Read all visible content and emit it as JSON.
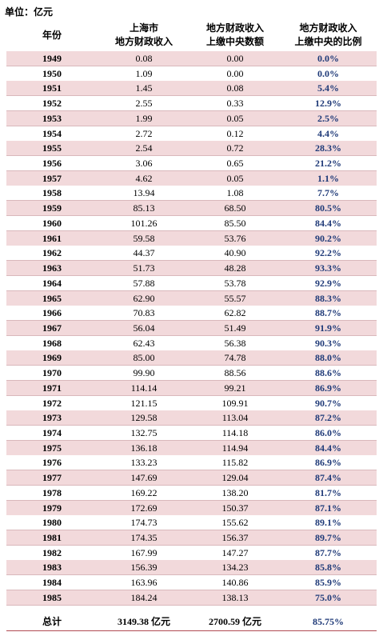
{
  "unit": "单位：亿元",
  "header": {
    "columns": [
      {
        "lines": [
          "年份"
        ]
      },
      {
        "lines": [
          "上海市",
          "地方财政收入"
        ]
      },
      {
        "lines": [
          "地方财政收入",
          "上缴中央数额"
        ]
      },
      {
        "lines": [
          "地方财政收入",
          "上缴中央的比例"
        ]
      }
    ]
  },
  "table": {
    "rows": [
      [
        "1949",
        "0.08",
        "0.00",
        "0.0%"
      ],
      [
        "1950",
        "1.09",
        "0.00",
        "0.0%"
      ],
      [
        "1951",
        "1.45",
        "0.08",
        "5.4%"
      ],
      [
        "1952",
        "2.55",
        "0.33",
        "12.9%"
      ],
      [
        "1953",
        "1.99",
        "0.05",
        "2.5%"
      ],
      [
        "1954",
        "2.72",
        "0.12",
        "4.4%"
      ],
      [
        "1955",
        "2.54",
        "0.72",
        "28.3%"
      ],
      [
        "1956",
        "3.06",
        "0.65",
        "21.2%"
      ],
      [
        "1957",
        "4.62",
        "0.05",
        "1.1%"
      ],
      [
        "1958",
        "13.94",
        "1.08",
        "7.7%"
      ],
      [
        "1959",
        "85.13",
        "68.50",
        "80.5%"
      ],
      [
        "1960",
        "101.26",
        "85.50",
        "84.4%"
      ],
      [
        "1961",
        "59.58",
        "53.76",
        "90.2%"
      ],
      [
        "1962",
        "44.37",
        "40.90",
        "92.2%"
      ],
      [
        "1963",
        "51.73",
        "48.28",
        "93.3%"
      ],
      [
        "1964",
        "57.88",
        "53.78",
        "92.9%"
      ],
      [
        "1965",
        "62.90",
        "55.57",
        "88.3%"
      ],
      [
        "1966",
        "70.83",
        "62.82",
        "88.7%"
      ],
      [
        "1967",
        "56.04",
        "51.49",
        "91.9%"
      ],
      [
        "1968",
        "62.43",
        "56.38",
        "90.3%"
      ],
      [
        "1969",
        "85.00",
        "74.78",
        "88.0%"
      ],
      [
        "1970",
        "99.90",
        "88.56",
        "88.6%"
      ],
      [
        "1971",
        "114.14",
        "99.21",
        "86.9%"
      ],
      [
        "1972",
        "121.15",
        "109.91",
        "90.7%"
      ],
      [
        "1973",
        "129.58",
        "113.04",
        "87.2%"
      ],
      [
        "1974",
        "132.75",
        "114.18",
        "86.0%"
      ],
      [
        "1975",
        "136.18",
        "114.94",
        "84.4%"
      ],
      [
        "1976",
        "133.23",
        "115.82",
        "86.9%"
      ],
      [
        "1977",
        "147.69",
        "129.04",
        "87.4%"
      ],
      [
        "1978",
        "169.22",
        "138.20",
        "81.7%"
      ],
      [
        "1979",
        "172.69",
        "150.37",
        "87.1%"
      ],
      [
        "1980",
        "174.73",
        "155.62",
        "89.1%"
      ],
      [
        "1981",
        "174.35",
        "156.37",
        "89.7%"
      ],
      [
        "1982",
        "167.99",
        "147.27",
        "87.7%"
      ],
      [
        "1983",
        "156.39",
        "134.23",
        "85.8%"
      ],
      [
        "1984",
        "163.96",
        "140.86",
        "85.9%"
      ],
      [
        "1985",
        "184.24",
        "138.13",
        "75.0%"
      ]
    ],
    "total": [
      "总计",
      "3149.38 亿元",
      "2700.59 亿元",
      "85.75%"
    ]
  }
}
